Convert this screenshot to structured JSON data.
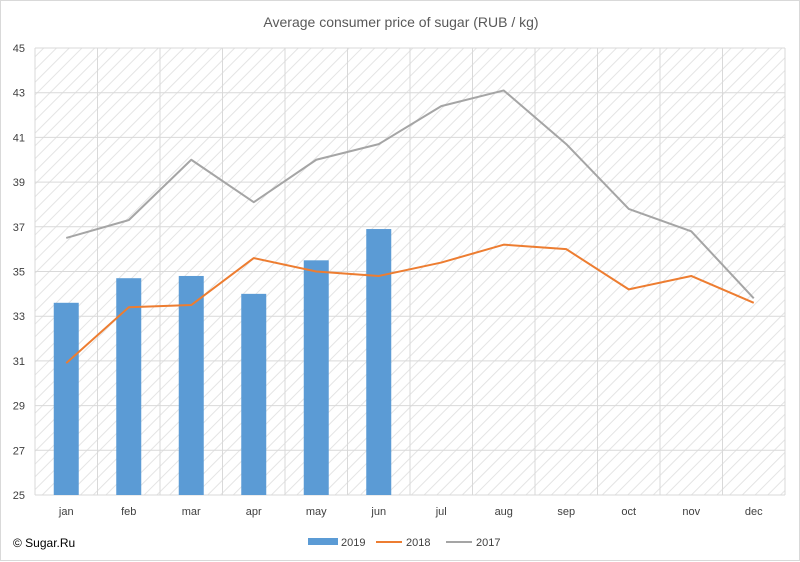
{
  "watermark": "© Sugar.Ru",
  "colors": {
    "series_2019": "#5b9bd5",
    "series_2018": "#ed7d31",
    "series_2017": "#a5a5a5",
    "grid": "#d9d9d9",
    "hatch": "#e4e4e4"
  },
  "chart_data": {
    "type": "bar",
    "title": "Average consumer price of sugar (RUB / kg)",
    "xlabel": "",
    "ylabel": "",
    "categories": [
      "jan",
      "feb",
      "mar",
      "apr",
      "may",
      "jun",
      "jul",
      "aug",
      "sep",
      "oct",
      "nov",
      "dec"
    ],
    "ylim": [
      25,
      45
    ],
    "yticks": [
      25,
      27,
      29,
      31,
      33,
      35,
      37,
      39,
      41,
      43,
      45
    ],
    "grid": true,
    "legend": "bottom",
    "series": [
      {
        "name": "2019",
        "type": "bar",
        "color": "#5b9bd5",
        "values": [
          33.6,
          34.7,
          34.8,
          34.0,
          35.5,
          36.9,
          null,
          null,
          null,
          null,
          null,
          null
        ]
      },
      {
        "name": "2018",
        "type": "line",
        "color": "#ed7d31",
        "values": [
          30.9,
          33.4,
          33.5,
          35.6,
          35.0,
          34.8,
          35.4,
          36.2,
          36.0,
          34.2,
          34.8,
          33.6
        ]
      },
      {
        "name": "2017",
        "type": "line",
        "color": "#a5a5a5",
        "values": [
          36.5,
          37.3,
          40.0,
          38.1,
          40.0,
          40.7,
          42.4,
          43.1,
          40.7,
          37.8,
          36.8,
          33.8
        ]
      }
    ]
  }
}
